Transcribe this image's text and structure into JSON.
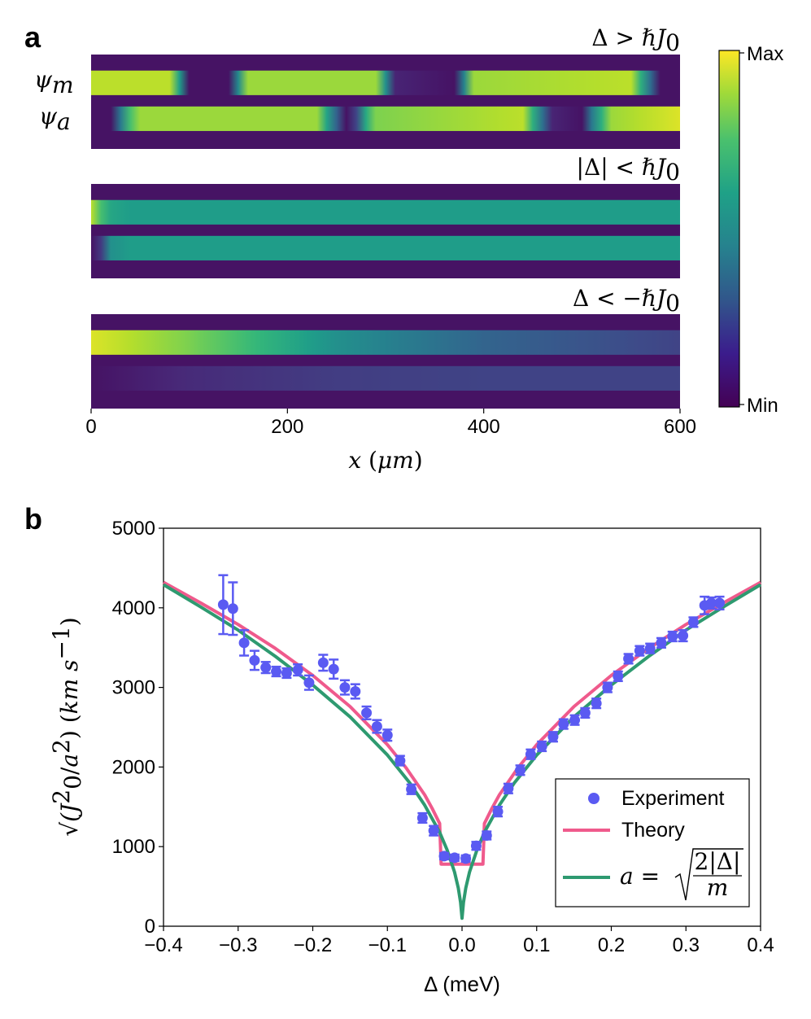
{
  "chart_data": [
    {
      "panel": "a",
      "type": "heatmap",
      "xlabel": "x (μm)",
      "xlim": [
        0,
        600
      ],
      "xticks": [
        "0",
        "200",
        "400",
        "600"
      ],
      "row_labels": [
        "ψ_m",
        "ψ_a"
      ],
      "colorbar": {
        "max_label": "Max",
        "min_label": "Min"
      },
      "subplots": [
        {
          "title": "Δ > ℏJ₀",
          "rows": [
            {
              "name": "ψ_m",
              "profile": [
                [
                  0,
                  0.9
                ],
                [
                  80,
                  0.9
                ],
                [
                  93,
                  0.45
                ],
                [
                  100,
                  0.05
                ],
                [
                  140,
                  0.05
                ],
                [
                  148,
                  0.4
                ],
                [
                  160,
                  0.85
                ],
                [
                  290,
                  0.85
                ],
                [
                  300,
                  0.5
                ],
                [
                  310,
                  0.1
                ],
                [
                  370,
                  0.05
                ],
                [
                  380,
                  0.45
                ],
                [
                  390,
                  0.85
                ],
                [
                  550,
                  0.9
                ],
                [
                  565,
                  0.5
                ],
                [
                  580,
                  0.05
                ],
                [
                  600,
                  0.05
                ]
              ]
            },
            {
              "name": "ψ_a",
              "profile": [
                [
                  0,
                  0.05
                ],
                [
                  20,
                  0.05
                ],
                [
                  30,
                  0.4
                ],
                [
                  45,
                  0.85
                ],
                [
                  230,
                  0.85
                ],
                [
                  245,
                  0.45
                ],
                [
                  260,
                  0.05
                ],
                [
                  270,
                  0.2
                ],
                [
                  285,
                  0.8
                ],
                [
                  440,
                  0.9
                ],
                [
                  455,
                  0.5
                ],
                [
                  470,
                  0.1
                ],
                [
                  500,
                  0.05
                ],
                [
                  510,
                  0.4
                ],
                [
                  530,
                  0.85
                ],
                [
                  600,
                  0.95
                ]
              ]
            }
          ]
        },
        {
          "title": "|Δ| < ℏJ₀",
          "rows": [
            {
              "name": "ψ_m",
              "profile": [
                [
                  0,
                  0.9
                ],
                [
                  5,
                  0.8
                ],
                [
                  15,
                  0.6
                ],
                [
                  40,
                  0.55
                ],
                [
                  600,
                  0.55
                ]
              ]
            },
            {
              "name": "ψ_a",
              "profile": [
                [
                  0,
                  0.05
                ],
                [
                  8,
                  0.1
                ],
                [
                  20,
                  0.5
                ],
                [
                  40,
                  0.55
                ],
                [
                  600,
                  0.55
                ]
              ]
            }
          ]
        },
        {
          "title": "Δ < −ℏJ₀",
          "rows": [
            {
              "name": "ψ_m",
              "profile": [
                [
                  0,
                  0.95
                ],
                [
                  100,
                  0.8
                ],
                [
                  250,
                  0.5
                ],
                [
                  400,
                  0.32
                ],
                [
                  600,
                  0.2
                ]
              ]
            },
            {
              "name": "ψ_a",
              "profile": [
                [
                  0,
                  0.05
                ],
                [
                  100,
                  0.12
                ],
                [
                  250,
                  0.18
                ],
                [
                  400,
                  0.2
                ],
                [
                  600,
                  0.2
                ]
              ]
            }
          ]
        }
      ]
    },
    {
      "panel": "b",
      "type": "scatter",
      "xlabel": "Δ (meV)",
      "ylabel": "√(J₀²/a²) (km s⁻¹)",
      "xlim": [
        -0.4,
        0.4
      ],
      "ylim": [
        0,
        5000
      ],
      "xticks": [
        "−0.4",
        "−0.3",
        "−0.2",
        "−0.1",
        "0.0",
        "0.1",
        "0.2",
        "0.3",
        "0.4"
      ],
      "yticks": [
        "0",
        "1000",
        "2000",
        "3000",
        "4000",
        "5000"
      ],
      "legend_position": "lower-right",
      "series": [
        {
          "name": "Experiment",
          "color": "#5a5af2",
          "x": [
            -0.32,
            -0.307,
            -0.292,
            -0.278,
            -0.263,
            -0.249,
            -0.235,
            -0.22,
            -0.205,
            -0.186,
            -0.172,
            -0.157,
            -0.143,
            -0.128,
            -0.114,
            -0.1,
            -0.083,
            -0.068,
            -0.053,
            -0.038,
            -0.024,
            -0.01,
            0.005,
            0.019,
            0.033,
            0.048,
            0.062,
            0.078,
            0.092,
            0.107,
            0.122,
            0.136,
            0.151,
            0.165,
            0.18,
            0.195,
            0.209,
            0.223,
            0.238,
            0.252,
            0.267,
            0.282,
            0.296,
            0.31,
            0.325,
            0.334,
            0.345
          ],
          "y": [
            4040,
            3990,
            3560,
            3340,
            3250,
            3200,
            3180,
            3220,
            3060,
            3310,
            3230,
            3000,
            2950,
            2680,
            2510,
            2400,
            2080,
            1720,
            1360,
            1200,
            880,
            860,
            850,
            1010,
            1140,
            1440,
            1730,
            1960,
            2160,
            2260,
            2380,
            2540,
            2590,
            2680,
            2800,
            3000,
            3140,
            3360,
            3460,
            3490,
            3560,
            3640,
            3650,
            3820,
            4030,
            4060,
            4060
          ],
          "err": [
            370,
            330,
            160,
            120,
            70,
            60,
            60,
            70,
            90,
            100,
            120,
            90,
            90,
            80,
            80,
            70,
            60,
            60,
            60,
            60,
            40,
            40,
            40,
            50,
            50,
            60,
            60,
            60,
            60,
            60,
            60,
            60,
            60,
            60,
            60,
            60,
            60,
            60,
            60,
            60,
            60,
            60,
            70,
            60,
            110,
            70,
            80
          ]
        },
        {
          "name": "Theory",
          "color": "#ef5a8c",
          "x": [
            -0.4,
            -0.35,
            -0.3,
            -0.25,
            -0.2,
            -0.15,
            -0.1,
            -0.075,
            -0.05,
            -0.04,
            -0.03,
            -0.028,
            0.028,
            0.03,
            0.04,
            0.05,
            0.075,
            0.1,
            0.15,
            0.2,
            0.25,
            0.3,
            0.35,
            0.4
          ],
          "y": [
            4320,
            4060,
            3790,
            3490,
            3150,
            2760,
            2280,
            1990,
            1650,
            1480,
            1290,
            780,
            780,
            1290,
            1480,
            1650,
            1990,
            2280,
            2760,
            3150,
            3490,
            3790,
            4060,
            4320
          ]
        },
        {
          "name": "a = √(2|Δ|/m)",
          "color": "#2e9a70",
          "x": [
            -0.4,
            -0.35,
            -0.3,
            -0.25,
            -0.2,
            -0.15,
            -0.1,
            -0.07,
            -0.05,
            -0.03,
            -0.02,
            -0.01,
            -0.005,
            -0.002,
            0,
            0.002,
            0.005,
            0.01,
            0.02,
            0.03,
            0.05,
            0.07,
            0.1,
            0.15,
            0.2,
            0.25,
            0.3,
            0.35,
            0.4
          ],
          "y": [
            4290,
            4010,
            3720,
            3390,
            3030,
            2630,
            2150,
            1800,
            1520,
            1180,
            960,
            680,
            480,
            300,
            100,
            300,
            480,
            680,
            960,
            1180,
            1520,
            1800,
            2150,
            2630,
            3030,
            3390,
            3720,
            4010,
            4290
          ]
        }
      ],
      "legend": {
        "experiment_label": "Experiment",
        "theory_label": "Theory",
        "fit_label_prefix": "a =",
        "fit_label_numer": "2|Δ|",
        "fit_label_denom": "m"
      }
    }
  ],
  "colors": {
    "experiment": "#5a5af2",
    "theory": "#ef5a8c",
    "fit": "#2e9a70",
    "viridis_low": "#440154",
    "viridis_high": "#fde725"
  }
}
